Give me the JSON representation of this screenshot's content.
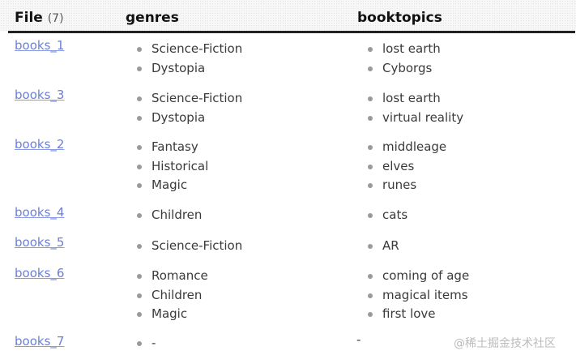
{
  "header": {
    "file_label": "File",
    "file_count": "(7)",
    "genres_label": "genres",
    "topics_label": "booktopics"
  },
  "rows": [
    {
      "file": "books_1",
      "genres": [
        "Science-Fiction",
        "Dystopia"
      ],
      "topics": [
        "lost earth",
        "Cyborgs"
      ]
    },
    {
      "file": "books_3",
      "genres": [
        "Science-Fiction",
        "Dystopia"
      ],
      "topics": [
        "lost earth",
        "virtual reality"
      ]
    },
    {
      "file": "books_2",
      "genres": [
        "Fantasy",
        "Historical",
        "Magic"
      ],
      "topics": [
        "middleage",
        "elves",
        "runes"
      ]
    },
    {
      "file": "books_4",
      "genres": [
        "Children"
      ],
      "topics": [
        "cats"
      ]
    },
    {
      "file": "books_5",
      "genres": [
        "Science-Fiction"
      ],
      "topics": [
        "AR"
      ]
    },
    {
      "file": "books_6",
      "genres": [
        "Romance",
        "Children",
        "Magic"
      ],
      "topics": [
        "coming of age",
        "magical items",
        "first love"
      ]
    },
    {
      "file": "books_7",
      "genres": [
        "-"
      ],
      "topics_text": "-"
    }
  ],
  "watermark": "@稀土掘金技术社区"
}
